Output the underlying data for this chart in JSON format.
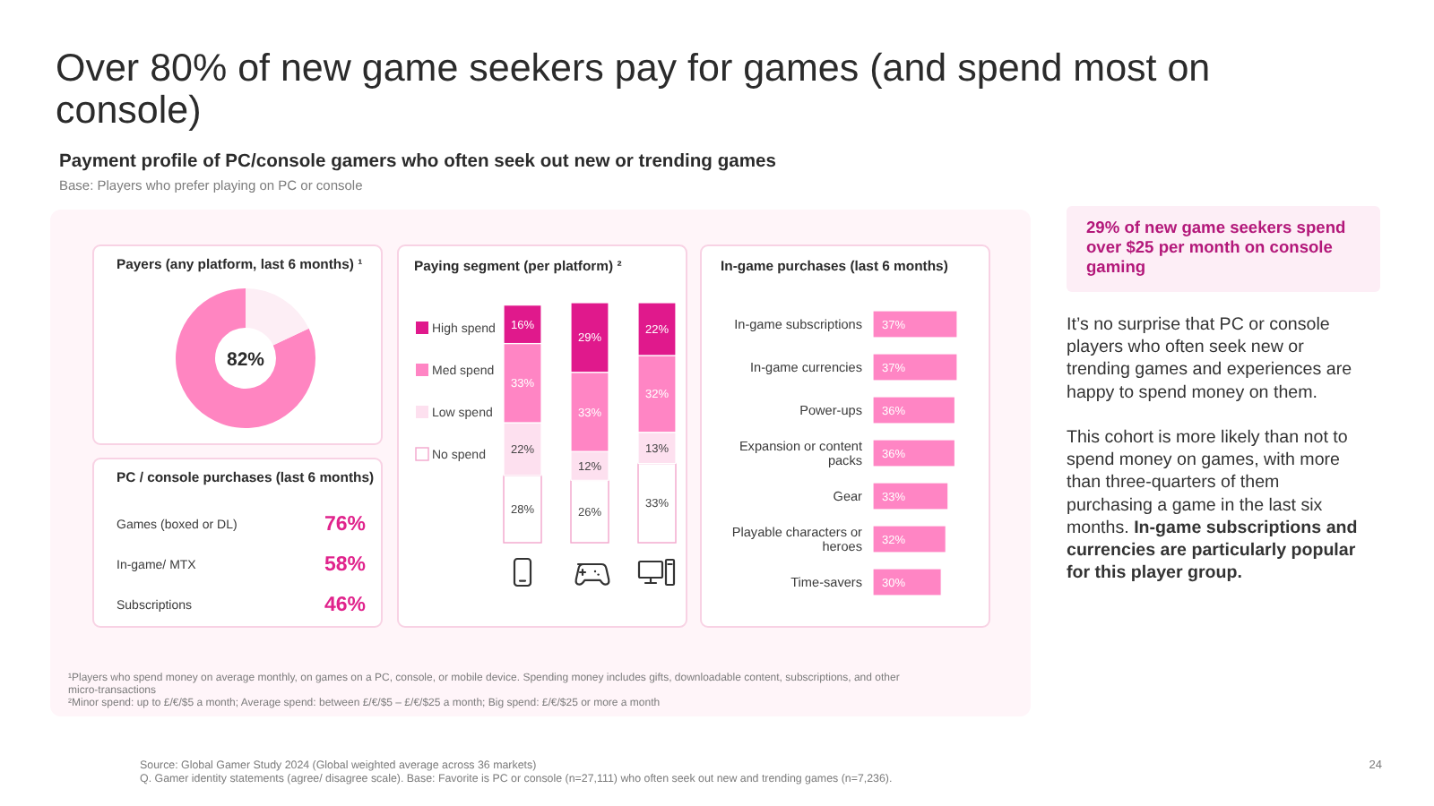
{
  "chart_data": [
    {
      "type": "other",
      "title": "Over 80% of new game seekers pay for games (and spend most on console)",
      "subtitle": "Payment profile of PC/console gamers who often seek out new or trending games",
      "annotations": [
        "Base: Players who prefer playing on PC or console",
        "¹Players who spend money on average monthly, on games on a PC, console, or mobile device. Spending money includes gifts, downloadable content, subscriptions, and other micro-transactions",
        "²Minor spend: up to £/€/$5 a month; Average spend: between £/€/$5 – £/€/$25 a month; Big spend: £/€/$25 or more a month",
        "Source: Global Gamer Study 2024 (Global weighted average across 36 markets)",
        "Q. Gamer identity statements (agree/ disagree scale). Base: Favorite is PC or console (n=27,111) who often seek out new and trending games (n=7,236).",
        "24"
      ]
    },
    {
      "type": "donut",
      "title": "Payers (any platform, last 6 months) ¹",
      "categories": [
        null,
        null
      ],
      "values": [
        82,
        18
      ],
      "colors": [
        "#ff85c1",
        "#fdeef5"
      ],
      "value_labels": [
        "82%",
        null
      ]
    },
    {
      "type": "other",
      "title": "PC / console purchases (last 6 months)",
      "categories": [
        "Games (boxed or DL)",
        "In-game/ MTX",
        "Subscriptions"
      ],
      "value_labels": [
        "76%",
        "58%",
        "46%"
      ],
      "color": "#e0238c"
    },
    {
      "type": "bar",
      "title": "Paying segment (per platform) ²",
      "categories": [
        null,
        null,
        null
      ],
      "stacked": true,
      "legend": "left",
      "series": [
        {
          "name": "No spend",
          "color": "#ffffff",
          "values": [
            28,
            26,
            33
          ],
          "value_labels": [
            "28%",
            "26%",
            "33%"
          ]
        },
        {
          "name": "Low spend",
          "color": "#fde0ef",
          "values": [
            22,
            12,
            13
          ],
          "value_labels": [
            "22%",
            "12%",
            "13%"
          ]
        },
        {
          "name": "Med spend",
          "color": "#ff85c4",
          "values": [
            33,
            33,
            32
          ],
          "value_labels": [
            "33%",
            "33%",
            "32%"
          ]
        },
        {
          "name": "High spend",
          "color": "#e0198c",
          "values": [
            16,
            29,
            22
          ],
          "value_labels": [
            "16%",
            "29%",
            "22%"
          ]
        }
      ]
    },
    {
      "type": "bar",
      "orientation": "horizontal",
      "title": "In-game purchases (last 6 months)",
      "categories": [
        "In-game subscriptions",
        "In-game currencies",
        "Power-ups",
        "Expansion or content packs",
        "Gear",
        "Playable characters or heroes",
        "Time-savers"
      ],
      "values": [
        37,
        37,
        36,
        36,
        33,
        32,
        30
      ],
      "color": "#ff85c4",
      "value_labels": [
        "37%",
        "37%",
        "36%",
        "36%",
        "33%",
        "32%",
        "30%"
      ]
    },
    {
      "type": "other",
      "annotations": [
        "29% of new game seekers spend over $25 per month on console gaming",
        "It’s no surprise that PC or console players who often seek new or trending games and experiences are happy to spend money on them.",
        "This cohort is more likely than not to spend money on games, with more than three-quarters of them purchasing a game in the last six months.",
        "In-game subscriptions and currencies are particularly popular for this player group."
      ]
    }
  ]
}
